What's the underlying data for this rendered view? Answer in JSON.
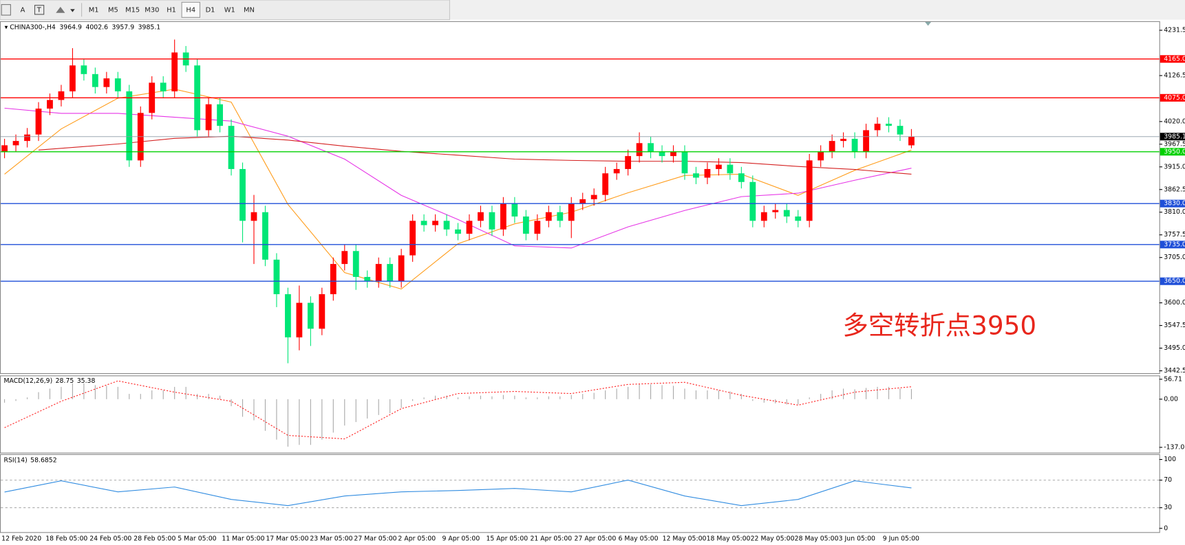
{
  "toolbar": {
    "buttons": [
      "A"
    ],
    "timeframes": [
      "M1",
      "M5",
      "M15",
      "M30",
      "H1",
      "H4",
      "D1",
      "W1",
      "MN"
    ],
    "active": "H4"
  },
  "chart_data": [
    {
      "type": "candlestick",
      "title": "CHINA300-,H4",
      "up_color": "#ff0000",
      "down_color": "#00e676",
      "open": [
        3950,
        3965,
        3975,
        3990,
        4050,
        4070,
        4090,
        4150,
        4130,
        4100,
        4120,
        4090,
        3930,
        4040,
        4110,
        4090,
        4180,
        4150,
        4000,
        4060,
        4010,
        3910,
        3790,
        3810,
        3700,
        3620,
        3520,
        3600,
        3540,
        3620,
        3690,
        3720,
        3660,
        3650,
        3690,
        3650,
        3710,
        3790,
        3780,
        3790,
        3770,
        3760,
        3790,
        3810,
        3770,
        3830,
        3800,
        3760,
        3790,
        3810,
        3790,
        3830,
        3840,
        3850,
        3900,
        3910,
        3940,
        3970,
        3950,
        3940,
        3950,
        3900,
        3890,
        3910,
        3920,
        3900,
        3880,
        3790,
        3810,
        3815,
        3800,
        3790,
        3930,
        3950,
        3975,
        3980,
        3950,
        4000,
        4015,
        4010,
        3964.9
      ],
      "high": [
        3980,
        3990,
        4005,
        4065,
        4085,
        4105,
        4190,
        4165,
        4145,
        4135,
        4135,
        4105,
        4055,
        4125,
        4125,
        4210,
        4195,
        4165,
        4075,
        4075,
        4025,
        3925,
        3850,
        3825,
        3715,
        3635,
        3640,
        3615,
        3635,
        3705,
        3735,
        3735,
        3675,
        3705,
        3705,
        3725,
        3805,
        3805,
        3805,
        3805,
        3785,
        3805,
        3825,
        3825,
        3845,
        3845,
        3815,
        3805,
        3825,
        3825,
        3845,
        3855,
        3865,
        3915,
        3925,
        3955,
        3995,
        3985,
        3965,
        3965,
        3965,
        3915,
        3925,
        3935,
        3935,
        3915,
        3895,
        3825,
        3830,
        3830,
        3815,
        3945,
        3965,
        3990,
        3995,
        3995,
        4015,
        4030,
        4030,
        4025,
        4002.6
      ],
      "low": [
        3935,
        3950,
        3960,
        3975,
        4035,
        4055,
        4075,
        4115,
        4085,
        4085,
        4075,
        3915,
        3915,
        4025,
        4075,
        4075,
        4135,
        3985,
        3985,
        3995,
        3895,
        3740,
        3690,
        3685,
        3590,
        3460,
        3490,
        3500,
        3525,
        3605,
        3675,
        3630,
        3635,
        3635,
        3635,
        3635,
        3695,
        3765,
        3765,
        3755,
        3745,
        3745,
        3775,
        3755,
        3755,
        3785,
        3745,
        3745,
        3775,
        3775,
        3750,
        3815,
        3825,
        3835,
        3885,
        3895,
        3925,
        3935,
        3925,
        3925,
        3885,
        3875,
        3875,
        3895,
        3885,
        3865,
        3775,
        3775,
        3795,
        3785,
        3775,
        3775,
        3915,
        3935,
        3960,
        3935,
        3935,
        3985,
        3995,
        3975,
        3957.9
      ],
      "close": [
        3965,
        3975,
        3990,
        4050,
        4070,
        4090,
        4150,
        4130,
        4100,
        4120,
        4090,
        3930,
        4040,
        4110,
        4090,
        4180,
        4150,
        4000,
        4060,
        4010,
        3910,
        3790,
        3810,
        3700,
        3620,
        3520,
        3600,
        3540,
        3620,
        3690,
        3720,
        3660,
        3650,
        3690,
        3650,
        3710,
        3790,
        3780,
        3790,
        3770,
        3760,
        3790,
        3810,
        3770,
        3830,
        3800,
        3760,
        3790,
        3810,
        3790,
        3830,
        3840,
        3850,
        3900,
        3910,
        3940,
        3970,
        3950,
        3940,
        3950,
        3900,
        3890,
        3910,
        3920,
        3900,
        3880,
        3790,
        3810,
        3815,
        3800,
        3790,
        3930,
        3950,
        3975,
        3980,
        3950,
        4000,
        4015,
        4010,
        3990,
        3985.1
      ],
      "series": [
        {
          "color": "#ff9c1a",
          "x": [
            0,
            5,
            10,
            15,
            20,
            25,
            30,
            35,
            40,
            45,
            50,
            55,
            60,
            65,
            70,
            75,
            80
          ],
          "values": [
            3898,
            4003,
            4074,
            4095,
            4065,
            3828,
            3670,
            3632,
            3737,
            3783,
            3810,
            3855,
            3895,
            3898,
            3849,
            3907,
            3954
          ]
        },
        {
          "color": "#e633e6",
          "x": [
            0,
            5,
            10,
            15,
            20,
            25,
            30,
            35,
            40,
            45,
            50,
            55,
            60,
            65,
            70,
            75,
            80
          ],
          "values": [
            4051,
            4039,
            4039,
            4030,
            4021,
            3986,
            3933,
            3849,
            3793,
            3732,
            3727,
            3776,
            3814,
            3846,
            3854,
            3884,
            3912
          ]
        },
        {
          "color": "#d42020",
          "x": [
            3,
            10,
            15,
            20,
            25,
            30,
            35,
            40,
            45,
            50,
            55,
            60,
            65,
            70,
            75,
            80
          ],
          "values": [
            3954,
            3968,
            3981,
            3986,
            3977,
            3963,
            3951,
            3942,
            3933,
            3930,
            3928,
            3928,
            3925,
            3916,
            3909,
            3898
          ]
        }
      ],
      "hlines": [
        {
          "value": 4165,
          "label": "4165.0",
          "color": "#ff0000"
        },
        {
          "value": 4075,
          "label": "4075.0",
          "color": "#ff0000"
        },
        {
          "value": 3950,
          "label": "3950.0",
          "color": "#00d000"
        },
        {
          "value": 3830,
          "label": "3830.0",
          "color": "#1f4fd8"
        },
        {
          "value": 3735,
          "label": "3735.0",
          "color": "#1f4fd8"
        },
        {
          "value": 3650,
          "label": "3650.0",
          "color": "#1f4fd8"
        }
      ],
      "ylim": [
        3437,
        4249
      ],
      "yticks": [
        {
          "value": 4231.5,
          "label": "4231.5"
        },
        {
          "value": 4126.5,
          "label": "4126.5"
        },
        {
          "value": 4020,
          "label": "4020.0"
        },
        {
          "value": 3967.5,
          "label": "3967.5"
        },
        {
          "value": 3915,
          "label": "3915.0"
        },
        {
          "value": 3862.5,
          "label": "3862.5"
        },
        {
          "value": 3810,
          "label": "3810.0"
        },
        {
          "value": 3757.5,
          "label": "3757.5"
        },
        {
          "value": 3705,
          "label": "3705.0"
        },
        {
          "value": 3600,
          "label": "3600.0"
        },
        {
          "value": 3547.5,
          "label": "3547.5"
        },
        {
          "value": 3495,
          "label": "3495.0"
        },
        {
          "value": 3442.5,
          "label": "3442.5"
        }
      ],
      "annotation": {
        "text": "多空转折点3950",
        "color": "#e8261c"
      },
      "x_labels": [
        "12 Feb 2020",
        "18 Feb 05:00",
        "24 Feb 05:00",
        "28 Feb 05:00",
        "5 Mar 05:00",
        "11 Mar 05:00",
        "17 Mar 05:00",
        "23 Mar 05:00",
        "27 Mar 05:00",
        "2 Apr 05:00",
        "9 Apr 05:00",
        "15 Apr 05:00",
        "21 Apr 05:00",
        "27 Apr 05:00",
        "6 May 05:00",
        "12 May 05:00",
        "18 May 05:00",
        "22 May 05:00",
        "28 May 05:00",
        "3 Jun 05:00",
        "9 Jun 05:00"
      ]
    },
    {
      "type": "macd",
      "title": "MACD(12,26,9)",
      "histogram": {
        "color": "#a8a8a8",
        "values": [
          -10,
          -5,
          5,
          20,
          30,
          35,
          45,
          45,
          40,
          38,
          35,
          15,
          15,
          25,
          25,
          35,
          35,
          15,
          15,
          10,
          -20,
          -50,
          -60,
          -90,
          -115,
          -135,
          -130,
          -130,
          -115,
          -95,
          -75,
          -65,
          -55,
          -45,
          -40,
          -25,
          -5,
          5,
          10,
          10,
          5,
          8,
          10,
          8,
          12,
          10,
          5,
          5,
          8,
          8,
          12,
          15,
          18,
          25,
          30,
          35,
          42,
          42,
          40,
          38,
          30,
          25,
          25,
          25,
          22,
          15,
          -5,
          -10,
          -12,
          -15,
          -15,
          5,
          15,
          25,
          30,
          28,
          32,
          35,
          35,
          30,
          28.75
        ]
      },
      "signal": {
        "color": "#ff2020",
        "x": [
          0,
          5,
          10,
          15,
          20,
          25,
          30,
          35,
          40,
          45,
          50,
          55,
          60,
          65,
          70,
          75,
          80
        ],
        "values": [
          -81,
          -6,
          52,
          20,
          -6,
          -103,
          -113,
          -27,
          16,
          22,
          16,
          42,
          48,
          11,
          -17,
          20,
          35.38
        ]
      },
      "ylim": [
        -152.1,
        67.5
      ],
      "yticks": [
        56.71,
        {
          "value": 0,
          "label": "0.00"
        },
        -137.01
      ]
    },
    {
      "type": "line",
      "title": "RSI(14)",
      "series": [
        {
          "color": "#2f8be0",
          "x": [
            0,
            5,
            10,
            15,
            20,
            25,
            30,
            35,
            40,
            45,
            50,
            55,
            60,
            65,
            70,
            75,
            80
          ],
          "values": [
            52.7,
            69,
            53,
            60,
            42,
            33,
            47,
            53,
            55,
            58,
            53,
            70,
            47,
            33,
            42,
            69,
            58.6852
          ]
        }
      ],
      "levels": [
        70,
        30
      ],
      "ylim": [
        -5.5,
        106.6
      ],
      "yticks": [
        100,
        70,
        30,
        0
      ]
    }
  ]
}
